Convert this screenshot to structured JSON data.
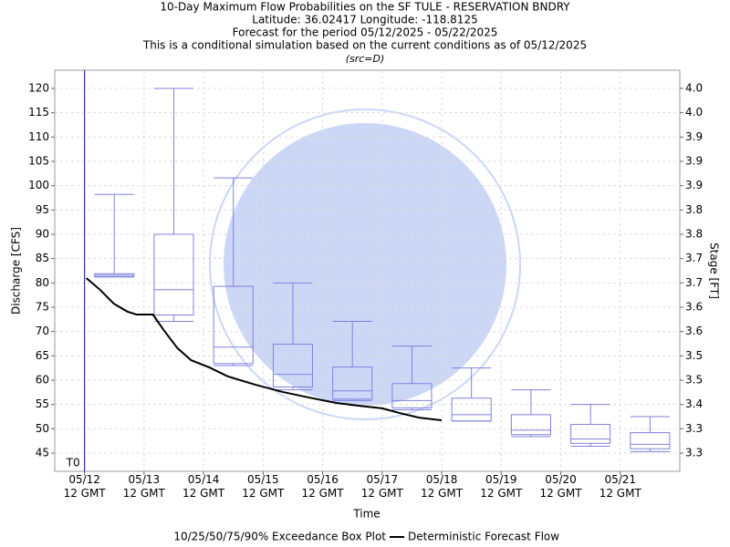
{
  "chart_data": {
    "type": "box",
    "title": "10-Day Maximum Flow Probabilities on the SF TULE - RESERVATION BNDRY",
    "subtitle": [
      "Latitude: 36.02417 Longitude: -118.8125",
      "Forecast for the period 05/12/2025 - 05/22/2025",
      "This is a conditional simulation based on the current conditions as of 05/12/2025"
    ],
    "source": "(src=D)",
    "xlabel": "Time",
    "ylabel": "Discharge [CFS]",
    "y2label": "Stage [FT]",
    "xlim": [
      -0.5,
      10
    ],
    "xticks": [
      {
        "value": 0,
        "label": "05/12\n12 GMT"
      },
      {
        "value": 1,
        "label": "05/13\n12 GMT"
      },
      {
        "value": 2,
        "label": "05/14\n12 GMT"
      },
      {
        "value": 3,
        "label": "05/15\n12 GMT"
      },
      {
        "value": 4,
        "label": "05/16\n12 GMT"
      },
      {
        "value": 5,
        "label": "05/17\n12 GMT"
      },
      {
        "value": 6,
        "label": "05/18\n12 GMT"
      },
      {
        "value": 7,
        "label": "05/19\n12 GMT"
      },
      {
        "value": 8,
        "label": "05/20\n12 GMT"
      },
      {
        "value": 9,
        "label": "05/21\n12 GMT"
      }
    ],
    "ylim": [
      41.25,
      123.75
    ],
    "yticks": [
      45,
      50,
      55,
      60,
      65,
      70,
      75,
      80,
      85,
      90,
      95,
      100,
      105,
      110,
      115,
      120
    ],
    "stage_labels": [
      "3.3",
      "3.3",
      "3.4",
      "3.5",
      "3.5",
      "3.6",
      "3.6",
      "3.7",
      "3.7",
      "3.8",
      "3.8",
      "3.9",
      "3.9",
      "3.9",
      "4.0",
      "4.0"
    ],
    "grid": true,
    "marker": {
      "label": "T0",
      "x": 0,
      "color": "#3333aa"
    },
    "boxes": {
      "name": "10/25/50/75/90% Exceedance Box Plot",
      "color": "#8080e0",
      "x": [
        0.5,
        1.5,
        2.5,
        3.5,
        4.5,
        5.5,
        6.5,
        7.5,
        8.5,
        9.5
      ],
      "p10": [
        81.2,
        72.1,
        63.0,
        58.0,
        55.8,
        53.9,
        51.6,
        48.4,
        46.4,
        45.3
      ],
      "p25": [
        81.3,
        73.4,
        63.4,
        58.6,
        56.1,
        54.3,
        51.6,
        48.8,
        47.0,
        45.9
      ],
      "p50": [
        81.6,
        78.6,
        66.8,
        61.2,
        57.8,
        55.8,
        52.9,
        49.7,
        47.9,
        46.8
      ],
      "p75": [
        81.9,
        90.0,
        79.3,
        67.4,
        62.7,
        59.3,
        56.3,
        52.9,
        50.9,
        49.2
      ],
      "p90": [
        98.2,
        120.0,
        101.6,
        80.0,
        72.1,
        67.0,
        62.5,
        58.0,
        55.0,
        52.5
      ]
    },
    "line": {
      "name": "Deterministic Forecast Flow",
      "color": "#000000",
      "x": [
        0.03,
        0.26,
        0.49,
        0.72,
        0.87,
        1.15,
        1.33,
        1.56,
        1.79,
        2.1,
        2.4,
        2.86,
        3.32,
        3.78,
        4.24,
        4.7,
        5.0,
        5.31,
        5.62,
        6.0
      ],
      "values": [
        81.0,
        78.6,
        75.75,
        74.1,
        73.5,
        73.5,
        70.3,
        66.6,
        64.1,
        62.6,
        60.8,
        59.1,
        57.6,
        56.4,
        55.3,
        54.6,
        54.2,
        53.2,
        52.3,
        51.75
      ]
    }
  }
}
